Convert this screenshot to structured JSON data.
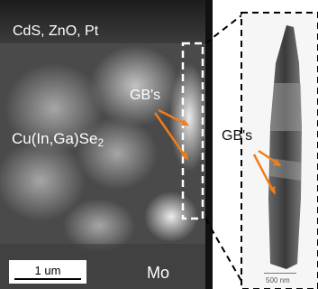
{
  "figure": {
    "top_label": "CdS, ZnO, Pt",
    "gb_label_main": "GB's",
    "material_label_main": "Cu(In,Ga)Se",
    "material_subscript": "2",
    "substrate_label": "Mo",
    "scale_bar_main": "1 um",
    "gb_label_inset": "GB's",
    "scale_bar_inset": "500 nm"
  },
  "colors": {
    "arrow": "#f07d1a",
    "dashed_box": "#ffffff",
    "connector": "#000000"
  }
}
